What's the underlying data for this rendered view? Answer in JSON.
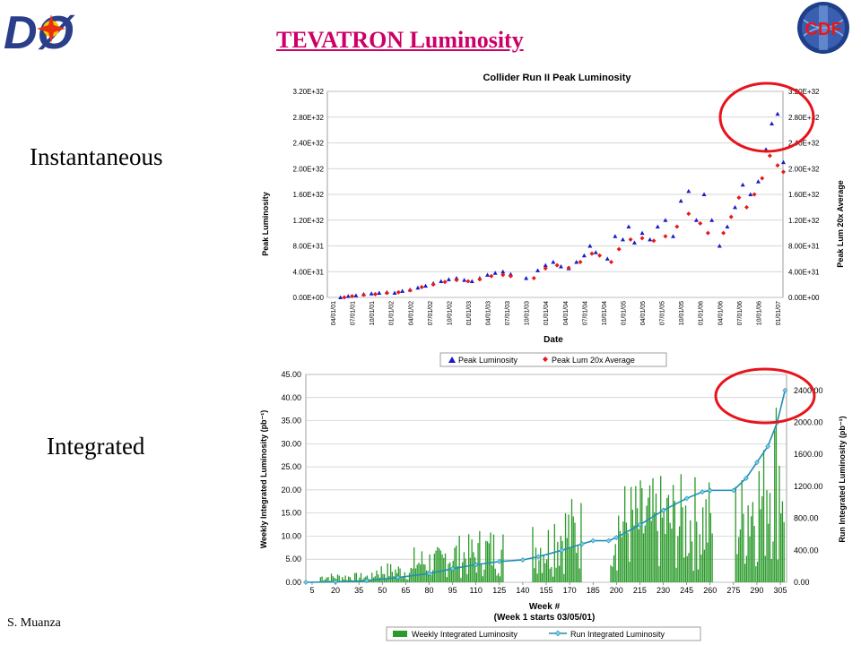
{
  "slide": {
    "title": "TEVATRON Luminosity",
    "label_instantaneous": "Instantaneous",
    "label_integrated": "Integrated",
    "author": "S. Muanza",
    "logo_left_text": "DØ",
    "logo_right_text": "CDF",
    "colors": {
      "title": "#cc0066",
      "circle": "#e8141c"
    }
  },
  "chart_data": [
    {
      "type": "scatter",
      "title": "Collider Run II Peak Luminosity",
      "xlabel": "Date",
      "ylabel": "Peak Luminosity",
      "y2label": "Peak Lum 20x Average",
      "ylim": [
        0,
        3.2e+32
      ],
      "y_ticks": [
        "0.00E+00",
        "4.00E+31",
        "8.00E+31",
        "1.20E+32",
        "1.60E+32",
        "2.00E+32",
        "2.40E+32",
        "2.80E+32",
        "3.20E+32"
      ],
      "y2_ticks": [
        "0.00E+00",
        "4.00E+31",
        "8.00E+31",
        "1.20E+32",
        "1.60E+32",
        "2.00E+32",
        "2.40E+32",
        "2.80E+32",
        "3.20E+32"
      ],
      "x_ticks": [
        "04/01/01",
        "07/01/01",
        "10/01/01",
        "01/01/02",
        "04/01/02",
        "07/01/02",
        "10/01/02",
        "01/01/03",
        "04/01/03",
        "07/01/03",
        "10/01/03",
        "01/01/04",
        "04/01/04",
        "07/01/04",
        "10/01/04",
        "01/01/05",
        "04/01/05",
        "07/01/05",
        "10/01/05",
        "01/01/06",
        "04/01/06",
        "07/01/06",
        "10/01/06",
        "01/01/07"
      ],
      "grid": true,
      "legend_position": "bottom",
      "legend": [
        "Peak Luminosity",
        "Peak Lum 20x Average"
      ],
      "series": [
        {
          "name": "Peak Luminosity",
          "color": "#1a1acc",
          "marker": "triangle",
          "note": "x = quarter index from 04/01/01 (0..23), y in units of 1E+30",
          "points": [
            [
              0.4,
              0
            ],
            [
              0.8,
              2
            ],
            [
              1.2,
              3
            ],
            [
              1.6,
              5
            ],
            [
              2.0,
              6
            ],
            [
              2.4,
              7
            ],
            [
              2.8,
              8
            ],
            [
              3.2,
              7
            ],
            [
              3.6,
              10
            ],
            [
              4.0,
              12
            ],
            [
              4.4,
              15
            ],
            [
              4.8,
              18
            ],
            [
              5.2,
              22
            ],
            [
              5.6,
              25
            ],
            [
              6.0,
              28
            ],
            [
              6.4,
              30
            ],
            [
              6.8,
              27
            ],
            [
              7.2,
              25
            ],
            [
              7.6,
              30
            ],
            [
              8.0,
              35
            ],
            [
              8.4,
              38
            ],
            [
              8.8,
              40
            ],
            [
              9.2,
              36
            ],
            [
              10.0,
              30
            ],
            [
              10.6,
              42
            ],
            [
              11.0,
              50
            ],
            [
              11.4,
              55
            ],
            [
              11.8,
              48
            ],
            [
              12.2,
              45
            ],
            [
              12.6,
              55
            ],
            [
              13.0,
              65
            ],
            [
              13.3,
              80
            ],
            [
              13.6,
              70
            ],
            [
              14.2,
              60
            ],
            [
              14.6,
              95
            ],
            [
              15.0,
              90
            ],
            [
              15.3,
              110
            ],
            [
              15.6,
              85
            ],
            [
              16.0,
              100
            ],
            [
              16.4,
              90
            ],
            [
              16.8,
              110
            ],
            [
              17.2,
              120
            ],
            [
              17.6,
              95
            ],
            [
              18.0,
              150
            ],
            [
              18.4,
              165
            ],
            [
              18.8,
              120
            ],
            [
              19.2,
              160
            ],
            [
              19.6,
              120
            ],
            [
              20.0,
              80
            ],
            [
              20.4,
              110
            ],
            [
              20.8,
              140
            ],
            [
              21.2,
              175
            ],
            [
              21.6,
              160
            ],
            [
              22.0,
              180
            ],
            [
              22.4,
              230
            ],
            [
              22.7,
              270
            ],
            [
              23.0,
              285
            ],
            [
              23.3,
              210
            ]
          ]
        },
        {
          "name": "Peak Lum 20x Average",
          "color": "#e81818",
          "marker": "diamond",
          "points": [
            [
              0.6,
              0
            ],
            [
              1.0,
              2
            ],
            [
              1.6,
              4
            ],
            [
              2.2,
              5
            ],
            [
              2.8,
              7
            ],
            [
              3.4,
              8
            ],
            [
              4.0,
              11
            ],
            [
              4.6,
              16
            ],
            [
              5.2,
              20
            ],
            [
              5.8,
              24
            ],
            [
              6.4,
              27
            ],
            [
              7.0,
              25
            ],
            [
              7.6,
              28
            ],
            [
              8.2,
              33
            ],
            [
              8.8,
              35
            ],
            [
              9.2,
              33
            ],
            [
              10.4,
              30
            ],
            [
              11.0,
              45
            ],
            [
              11.6,
              50
            ],
            [
              12.2,
              46
            ],
            [
              12.8,
              55
            ],
            [
              13.4,
              68
            ],
            [
              13.8,
              65
            ],
            [
              14.4,
              55
            ],
            [
              14.8,
              75
            ],
            [
              15.4,
              90
            ],
            [
              16.0,
              92
            ],
            [
              16.6,
              88
            ],
            [
              17.2,
              95
            ],
            [
              17.8,
              110
            ],
            [
              18.4,
              130
            ],
            [
              19.0,
              115
            ],
            [
              19.4,
              100
            ],
            [
              20.2,
              100
            ],
            [
              20.6,
              125
            ],
            [
              21.0,
              155
            ],
            [
              21.4,
              140
            ],
            [
              21.8,
              160
            ],
            [
              22.2,
              185
            ],
            [
              22.6,
              220
            ],
            [
              23.0,
              205
            ],
            [
              23.3,
              195
            ]
          ]
        }
      ]
    },
    {
      "type": "bar",
      "xlabel": "Week #",
      "xlabel_note": "(Week 1 starts 03/05/01)",
      "ylabel": "Weekly Integrated Luminosity (pb⁻¹)",
      "y2label": "Run Integrated Luminosity (pb⁻¹)",
      "ylim": [
        0,
        45
      ],
      "y2lim": [
        0,
        2600
      ],
      "y_ticks": [
        "0.00",
        "5.00",
        "10.00",
        "15.00",
        "20.00",
        "25.00",
        "30.00",
        "35.00",
        "40.00",
        "45.00"
      ],
      "y2_ticks": [
        "0.00",
        "400.00",
        "800.00",
        "1200.00",
        "1600.00",
        "2000.00",
        "2400.00"
      ],
      "x_ticks": [
        "5",
        "20",
        "35",
        "50",
        "65",
        "80",
        "95",
        "110",
        "125",
        "140",
        "155",
        "170",
        "185",
        "200",
        "215",
        "230",
        "245",
        "260",
        "275",
        "290",
        "305"
      ],
      "grid": true,
      "legend_position": "bottom",
      "legend": [
        "Weekly Integrated Luminosity",
        "Run Integrated Luminosity"
      ],
      "series": [
        {
          "name": "Weekly Integrated Luminosity",
          "color": "#2a9a2a",
          "segments": [
            [
              10,
              45,
              1.2
            ],
            [
              45,
              70,
              2.5
            ],
            [
              70,
              90,
              4.5
            ],
            [
              90,
              112,
              6.0
            ],
            [
              112,
              128,
              7.0
            ],
            [
              146,
              160,
              8.0
            ],
            [
              160,
              178,
              11.0
            ],
            [
              196,
              228,
              13.0
            ],
            [
              228,
              262,
              13.5
            ],
            [
              276,
              284,
              14.0
            ],
            [
              284,
              296,
              18.0
            ],
            [
              296,
              308,
              25.0
            ]
          ]
        },
        {
          "name": "Run Integrated Luminosity",
          "color": "#1e8fb4",
          "marker": "diamond",
          "points": [
            [
              1,
              0
            ],
            [
              20,
              5
            ],
            [
              40,
              20
            ],
            [
              60,
              60
            ],
            [
              80,
              110
            ],
            [
              95,
              170
            ],
            [
              110,
              220
            ],
            [
              125,
              260
            ],
            [
              140,
              280
            ],
            [
              150,
              320
            ],
            [
              165,
              400
            ],
            [
              178,
              480
            ],
            [
              185,
              520
            ],
            [
              195,
              520
            ],
            [
              200,
              560
            ],
            [
              215,
              720
            ],
            [
              230,
              900
            ],
            [
              245,
              1050
            ],
            [
              255,
              1130
            ],
            [
              260,
              1150
            ],
            [
              275,
              1150
            ],
            [
              283,
              1300
            ],
            [
              290,
              1500
            ],
            [
              297,
              1700
            ],
            [
              303,
              2000
            ],
            [
              308,
              2400
            ]
          ]
        }
      ]
    }
  ]
}
